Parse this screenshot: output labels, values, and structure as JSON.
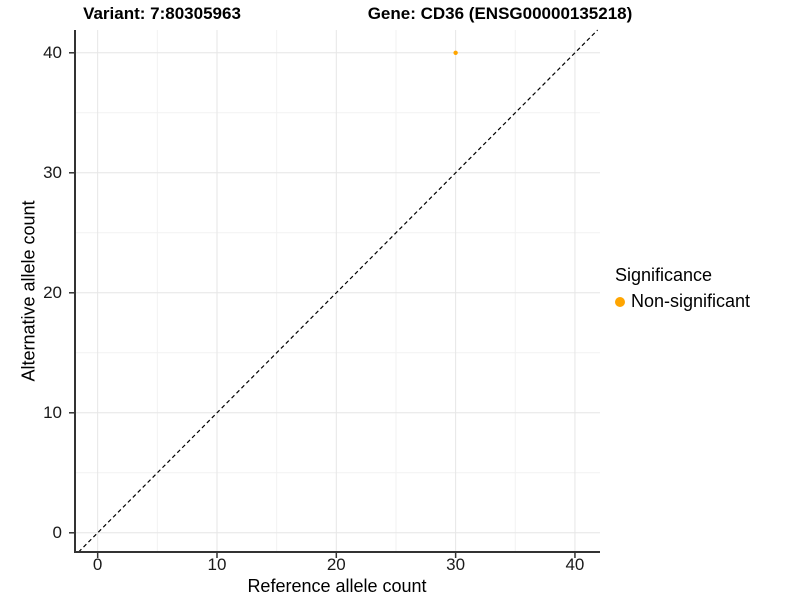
{
  "chart_data": {
    "type": "scatter",
    "title_left": "Variant: 7:80305963",
    "title_right": "Gene: CD36 (ENSG00000135218)",
    "xlabel": "Reference allele count",
    "ylabel": "Alternative allele count",
    "xlim": [
      -1.9,
      42.1
    ],
    "ylim": [
      -1.6,
      41.9
    ],
    "x_ticks": [
      0,
      10,
      20,
      30,
      40
    ],
    "y_ticks": [
      0,
      10,
      20,
      30,
      40
    ],
    "x_minor_gridlines": [
      5,
      15,
      25,
      35
    ],
    "y_minor_gridlines": [
      5,
      15,
      25,
      35
    ],
    "grid": "on",
    "identity_line": {
      "equation": "y = x",
      "style": "dashed",
      "color": "#000000"
    },
    "series": [
      {
        "name": "Non-significant",
        "color": "#FFA500",
        "points": [
          {
            "x": 30,
            "y": 40
          }
        ]
      }
    ],
    "legend": {
      "title": "Significance",
      "position": "right",
      "entries": [
        {
          "label": "Non-significant",
          "color": "#FFA500"
        }
      ]
    },
    "style_colors": {
      "axis_line": "#333333",
      "grid_major": "#E6E6E6",
      "grid_minor": "#F2F2F2",
      "tick_text": "#1a1a1a"
    }
  }
}
